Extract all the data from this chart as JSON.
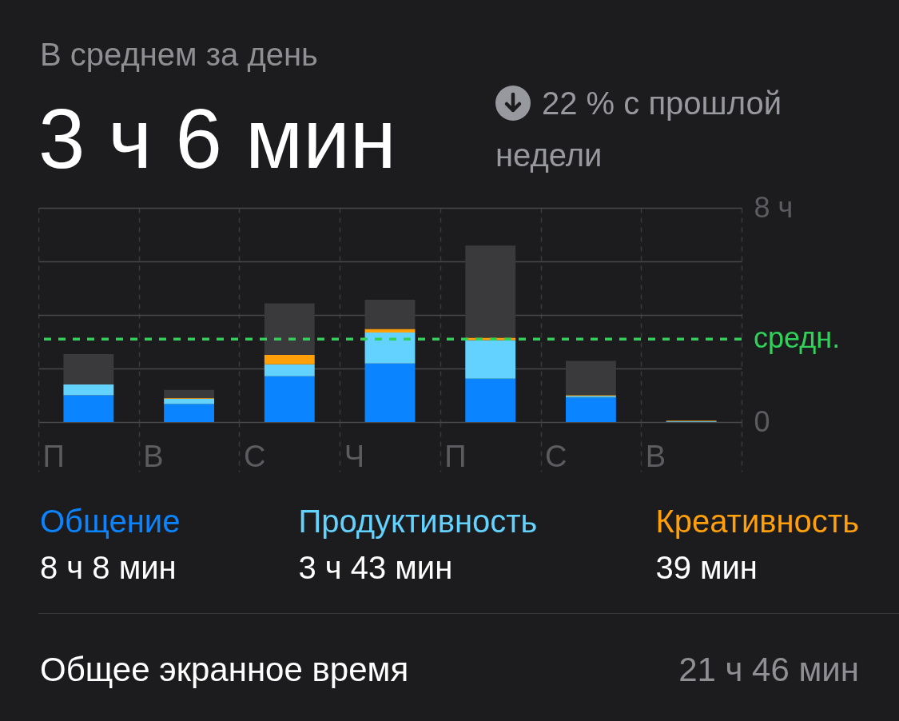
{
  "chart_data": {
    "type": "bar",
    "title": "В среднем за день",
    "subtitle": "3 ч 6 мин",
    "categories": [
      "П",
      "В",
      "С",
      "Ч",
      "П",
      "С",
      "В"
    ],
    "series": [
      {
        "name": "Общение",
        "color": "#0a84ff",
        "values": [
          1.0,
          0.67,
          1.71,
          2.19,
          1.62,
          0.92,
          0.01
        ]
      },
      {
        "name": "Продуктивность",
        "color": "#64d2ff",
        "values": [
          0.4,
          0.2,
          0.45,
          1.15,
          1.44,
          0.06,
          0.02
        ]
      },
      {
        "name": "Креативность",
        "color": "#ff9f0a",
        "values": [
          0,
          0.03,
          0.35,
          0.14,
          0.09,
          0.03,
          0.02
        ]
      },
      {
        "color": "#3a3a3c",
        "values": [
          1.14,
          0.3,
          1.92,
          1.09,
          3.44,
          1.27,
          0
        ]
      }
    ],
    "stacked": true,
    "ylim": [
      0,
      8
    ],
    "yticks": [
      0,
      {
        "value": 2,
        "label": null
      },
      {
        "value": 4,
        "label": null
      },
      {
        "value": 6,
        "label": null
      },
      {
        "value": 8,
        "label": "8 ч"
      }
    ],
    "grid": true,
    "legend": "bottom",
    "ref_lines": [
      {
        "axis": "y",
        "value": 3.1,
        "label": "средн.",
        "color": "#30d158",
        "line_style": "dashed"
      }
    ],
    "annotations": [
      "22 % с прошлой недели",
      "8 ч 8 мин",
      "3 ч 43 мин",
      "39 мин",
      "Общее экранное время",
      "21 ч 46 мин"
    ]
  }
}
